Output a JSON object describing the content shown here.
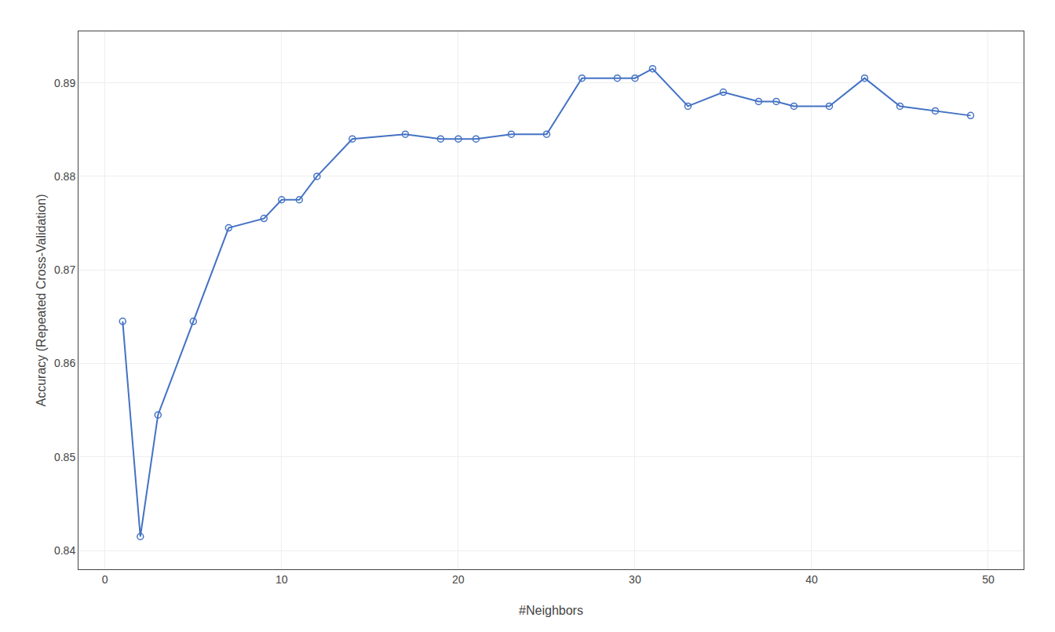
{
  "chart_data": {
    "type": "line",
    "x": [
      1,
      2,
      3,
      5,
      7,
      9,
      10,
      11,
      12,
      14,
      17,
      19,
      20,
      21,
      23,
      25,
      27,
      29,
      30,
      31,
      33,
      35,
      37,
      38,
      39,
      41,
      43,
      45,
      47,
      49
    ],
    "values": [
      0.8645,
      0.8415,
      0.8545,
      0.8645,
      0.8745,
      0.8755,
      0.8775,
      0.8775,
      0.88,
      0.884,
      0.8845,
      0.884,
      0.884,
      0.884,
      0.8845,
      0.8845,
      0.8905,
      0.8905,
      0.8905,
      0.8915,
      0.8875,
      0.889,
      0.888,
      0.888,
      0.8875,
      0.8875,
      0.8905,
      0.8875,
      0.887,
      0.8865
    ],
    "color": "#4472C4",
    "marker": "circle-open",
    "line_style": "solid",
    "xlabel": "#Neighbors",
    "ylabel": "Accuracy (Repeated Cross-Validation)",
    "xlim": [
      -1.5,
      52
    ],
    "ylim": [
      0.838,
      0.8955
    ],
    "xticks": [
      0,
      10,
      20,
      30,
      40,
      50
    ],
    "yticks": [
      0.84,
      0.85,
      0.86,
      0.87,
      0.88,
      0.89
    ],
    "grid": true
  }
}
